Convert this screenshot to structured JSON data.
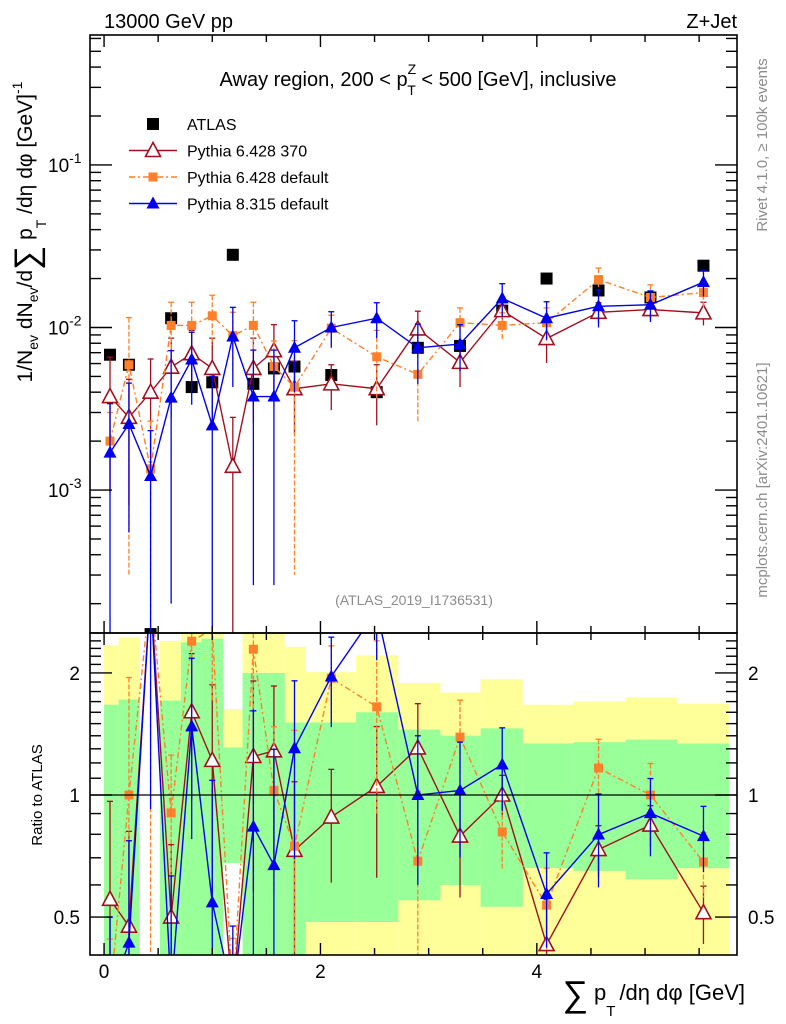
{
  "header": {
    "left": "13000 GeV pp",
    "right": "Z+Jet"
  },
  "side_text": {
    "rivet": "Rivet 4.1.0, ≥ 100k events",
    "mcplots": "mcplots.cern.ch [arXiv:2401.10621]"
  },
  "colors": {
    "atlas": "#000000",
    "py6_370": "#a0101e",
    "py6_default": "#ff7f2a",
    "py8": "#0000ee",
    "band_outer": "#ffff99",
    "band_inner": "#99ff99"
  },
  "chart_data": {
    "type": "scatter",
    "title": "Away region, 200 < pTZ < 500 [GeV], inclusive",
    "title_parts": {
      "pre": "Away region, 200 < p",
      "sup": "Z",
      "sub": "T",
      "post": " < 500 [GeV], inclusive"
    },
    "analysis": "(ATLAS_2019_I1736531)",
    "xlabel": "∑ pT /dη dφ [GeV]",
    "xlabel_parts": {
      "sum": "∑",
      "p": "p",
      "sub": "T",
      "rest": "/dη dφ [GeV]"
    },
    "ylabel": "1/Nev dNev/d∑ pT /dη dφ [GeV]^-1",
    "ylabel_parts": {
      "a": "1/N",
      "ev": "ev",
      "b": " dN",
      "c": "/d",
      "sum": "∑",
      "p": " p",
      "T": "T",
      "d": " /dη dφ  [GeV]",
      "exp": "-1"
    },
    "ratio_ylabel": "Ratio to ATLAS",
    "xlim": [
      -0.13,
      5.85
    ],
    "ylim": [
      0.000132,
      0.63
    ],
    "yscale": "log",
    "ratio_ylim": [
      0.403,
      2.51
    ],
    "xticks": [
      "0",
      "2",
      "4"
    ],
    "xtick_values": [
      0,
      2,
      4
    ],
    "yticks": [
      {
        "base": "10",
        "exp": "-1",
        "value": 0.1
      },
      {
        "base": "10",
        "exp": "-2",
        "value": 0.01
      },
      {
        "base": "10",
        "exp": "-3",
        "value": 0.001
      }
    ],
    "ratio_yticks": [
      {
        "label": "0.5",
        "value": 0.5
      },
      {
        "label": "1",
        "value": 1
      },
      {
        "label": "2",
        "value": 2
      }
    ],
    "legend_position": "top-left",
    "bin_edges": [
      0,
      0.135,
      0.33,
      0.516,
      0.71,
      0.9,
      1.1,
      1.28,
      1.475,
      1.67,
      1.864,
      2.33,
      2.72,
      3.11,
      3.48,
      3.87,
      4.34,
      4.82,
      5.3,
      5.78
    ],
    "x": [
      0.055,
      0.23,
      0.43,
      0.62,
      0.81,
      1.0,
      1.19,
      1.38,
      1.57,
      1.76,
      2.1,
      2.52,
      2.9,
      3.29,
      3.68,
      4.09,
      4.57,
      5.05,
      5.54
    ],
    "data_band_outer": [
      [
        0.3,
        2.34
      ],
      [
        0.3,
        2.45
      ],
      null,
      [
        0.3,
        2.4
      ],
      [
        0.3,
        3
      ],
      [
        0.3,
        3
      ],
      [
        0.68,
        1.63
      ],
      [
        0.3,
        3
      ],
      [
        0.3,
        3
      ],
      [
        0.3,
        2.32
      ],
      [
        0.3,
        2.01
      ],
      [
        0.3,
        2.21
      ],
      [
        0.3,
        1.89
      ],
      [
        0.3,
        1.79
      ],
      [
        0.3,
        1.93
      ],
      [
        0.3,
        1.67
      ],
      [
        0.3,
        1.7
      ],
      [
        0.3,
        1.74
      ],
      [
        0.3,
        1.68
      ]
    ],
    "data_band_inner": [
      [
        0.3,
        1.67
      ],
      [
        0.3,
        1.72
      ],
      null,
      [
        0.3,
        1.71
      ],
      [
        0.3,
        2.38
      ],
      [
        0.3,
        2.43
      ],
      [
        0.68,
        1.31
      ],
      [
        0.3,
        2.0
      ],
      [
        0.3,
        2.0
      ],
      [
        0.3,
        1.51
      ],
      [
        0.486,
        1.51
      ],
      [
        0.486,
        1.6
      ],
      [
        0.55,
        1.45
      ],
      [
        0.6,
        1.4
      ],
      [
        0.53,
        1.46
      ],
      [
        0.66,
        1.34
      ],
      [
        0.65,
        1.35
      ],
      [
        0.62,
        1.37
      ],
      [
        0.66,
        1.34
      ]
    ],
    "series": [
      {
        "name": "ATLAS",
        "key": "atlas",
        "marker": "square",
        "values": [
          0.0068,
          0.0059,
          0.00013,
          0.0114,
          0.0043,
          0.0046,
          0.028,
          0.0045,
          0.0056,
          0.00575,
          0.0051,
          0.004,
          0.0075,
          0.0077,
          0.0127,
          0.02,
          0.0169,
          0.0153,
          0.024
        ],
        "errors": [
          0,
          0,
          0,
          0,
          0,
          0,
          0,
          0,
          0,
          0,
          0,
          0,
          0,
          0,
          0,
          0,
          0,
          0,
          0
        ]
      },
      {
        "name": "Pythia 6.428 370",
        "key": "py6_370",
        "marker": "open-triangle",
        "dash": "",
        "values": [
          0.00376,
          0.0028,
          0.004,
          0.0057,
          0.0069,
          0.0056,
          0.0014,
          0.0056,
          0.0072,
          0.0042,
          0.0045,
          0.0042,
          0.0098,
          0.0061,
          0.0127,
          0.00855,
          0.0124,
          0.0129,
          0.0123
        ],
        "errors": [
          0.0028,
          0.002,
          0.0024,
          0.0029,
          0.0027,
          0.003,
          0.0014,
          0.003,
          0.0032,
          0.002,
          0.0014,
          0.0017,
          0.0028,
          0.0018,
          0.0015,
          0.0025,
          0.0018,
          0.0015,
          0.002
        ]
      },
      {
        "name": "Pythia 6.428 default",
        "key": "py6_default",
        "marker": "square-small",
        "dash": "6 3 2 3",
        "values": [
          0.002,
          0.0059,
          0.00135,
          0.0103,
          0.0103,
          0.0118,
          0.0089,
          0.0103,
          0.00575,
          0.0043,
          0.0099,
          0.0066,
          0.00515,
          0.0107,
          0.0103,
          0.0107,
          0.0197,
          0.0153,
          0.0164
        ],
        "errors": [
          0.001,
          0.0056,
          0.0013,
          0.004,
          0.004,
          0.004,
          0.0035,
          0.004,
          0.0025,
          0.004,
          0.002,
          0.003,
          0.0025,
          0.0025,
          0.002,
          0.0025,
          0.0035,
          0.003,
          0.003
        ]
      },
      {
        "name": "Pythia 8.315 default",
        "key": "py8",
        "marker": "triangle",
        "dash": "",
        "values": [
          0.0017,
          0.00255,
          0.00122,
          0.0037,
          0.00635,
          0.0025,
          0.0088,
          0.00376,
          0.00376,
          0.0075,
          0.01,
          0.0114,
          0.0075,
          0.0079,
          0.0151,
          0.0114,
          0.0135,
          0.0138,
          0.019
        ],
        "errors": [
          0.0017,
          0.002,
          0.0011,
          0.0035,
          0.003,
          0.0025,
          0.0045,
          0.0035,
          0.0035,
          0.0035,
          0.0025,
          0.0028,
          0.003,
          0.0025,
          0.0035,
          0.003,
          0.0035,
          0.003,
          0.0035
        ]
      }
    ]
  }
}
